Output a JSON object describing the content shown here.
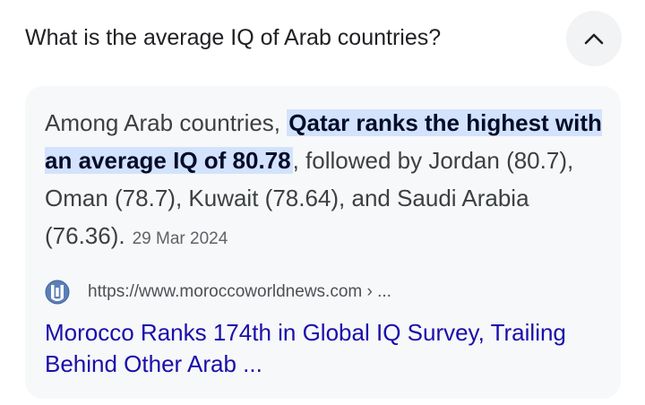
{
  "question": {
    "text": "What is the average IQ of Arab countries?",
    "expanded": true
  },
  "answer": {
    "prefix": "Among Arab countries, ",
    "highlight": "Qatar ranks the highest with an average IQ of 80.78",
    "suffix": ", followed by Jordan (80.7), Oman (78.7), Kuwait (78.64), and Saudi Arabia (76.36).",
    "date": "29 Mar 2024"
  },
  "source": {
    "url": "https://www.moroccoworldnews.com › ...",
    "favicon": "moroccoworldnews-icon",
    "title": "Morocco Ranks 174th in Global IQ Survey, Trailing Behind Other Arab ..."
  },
  "colors": {
    "link": "#1a0dab",
    "highlight_bg": "#d3e3fd",
    "card_bg": "#f7f8f9"
  }
}
